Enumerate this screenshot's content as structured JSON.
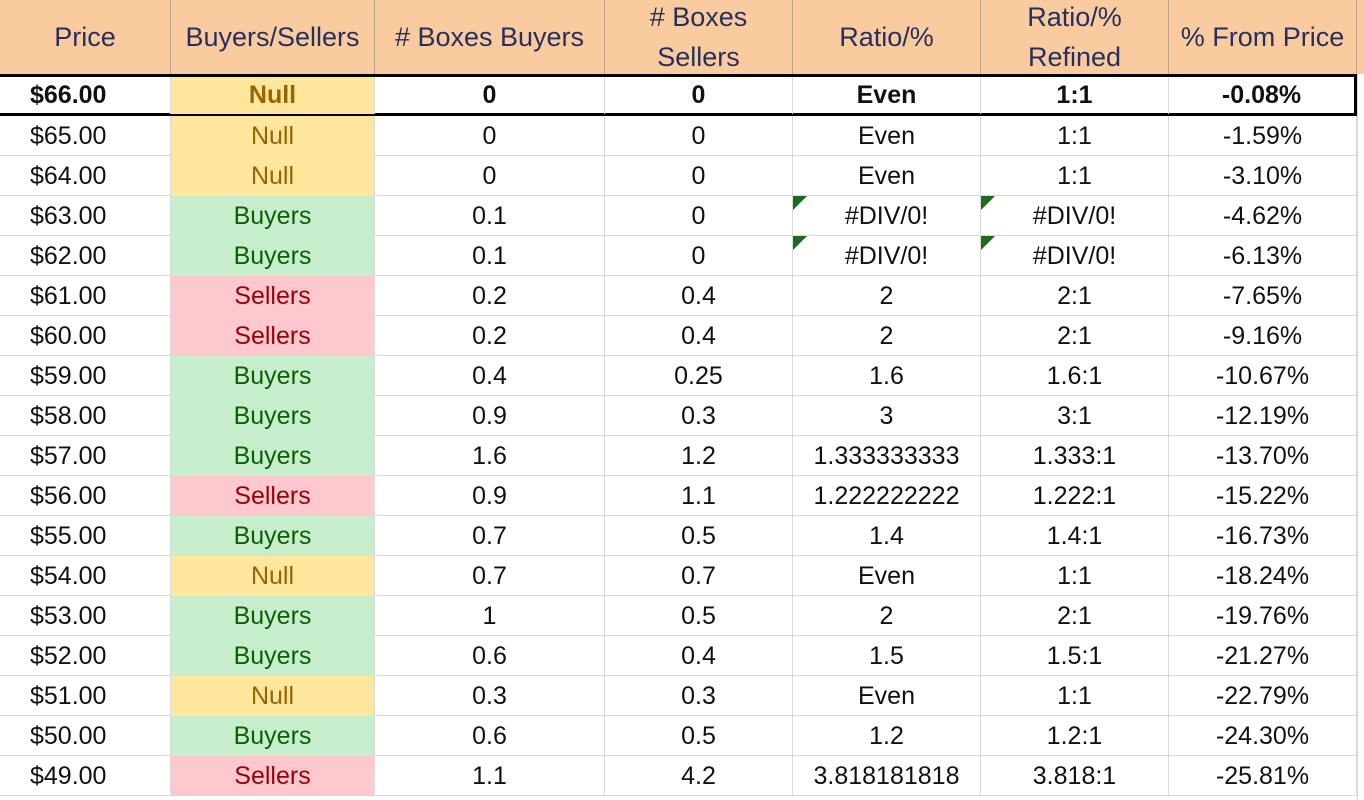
{
  "columns": [
    "Price",
    "Buyers/Sellers",
    "# Boxes Buyers",
    "# Boxes Sellers",
    "Ratio/%",
    "Ratio/% Refined",
    "% From Price"
  ],
  "header_lines": [
    [
      "Price"
    ],
    [
      "Buyers/Sellers"
    ],
    [
      "# Boxes Buyers"
    ],
    [
      "# Boxes",
      "Sellers"
    ],
    [
      "Ratio/%"
    ],
    [
      "Ratio/%",
      "Refined"
    ],
    [
      "% From Price"
    ]
  ],
  "colors": {
    "header_bg": "#fbcba0",
    "header_text": "#26305e",
    "null_bg": "#fee79c",
    "null_text": "#9b6402",
    "buyers_bg": "#c7efce",
    "buyers_text": "#0a6200",
    "sellers_bg": "#ffc7ce",
    "sellers_text": "#9c0007",
    "error_flag": "#1e6b1e"
  },
  "rows": [
    {
      "price": "$66.00",
      "bs": "Null",
      "buyers": "0",
      "sellers": "0",
      "ratio": "Even",
      "refined": "1:1",
      "from": "-0.08%"
    },
    {
      "price": "$65.00",
      "bs": "Null",
      "buyers": "0",
      "sellers": "0",
      "ratio": "Even",
      "refined": "1:1",
      "from": "-1.59%"
    },
    {
      "price": "$64.00",
      "bs": "Null",
      "buyers": "0",
      "sellers": "0",
      "ratio": "Even",
      "refined": "1:1",
      "from": "-3.10%"
    },
    {
      "price": "$63.00",
      "bs": "Buyers",
      "buyers": "0.1",
      "sellers": "0",
      "ratio": "#DIV/0!",
      "refined": "#DIV/0!",
      "from": "-4.62%",
      "flag": true
    },
    {
      "price": "$62.00",
      "bs": "Buyers",
      "buyers": "0.1",
      "sellers": "0",
      "ratio": "#DIV/0!",
      "refined": "#DIV/0!",
      "from": "-6.13%",
      "flag": true
    },
    {
      "price": "$61.00",
      "bs": "Sellers",
      "buyers": "0.2",
      "sellers": "0.4",
      "ratio": "2",
      "refined": "2:1",
      "from": "-7.65%"
    },
    {
      "price": "$60.00",
      "bs": "Sellers",
      "buyers": "0.2",
      "sellers": "0.4",
      "ratio": "2",
      "refined": "2:1",
      "from": "-9.16%"
    },
    {
      "price": "$59.00",
      "bs": "Buyers",
      "buyers": "0.4",
      "sellers": "0.25",
      "ratio": "1.6",
      "refined": "1.6:1",
      "from": "-10.67%"
    },
    {
      "price": "$58.00",
      "bs": "Buyers",
      "buyers": "0.9",
      "sellers": "0.3",
      "ratio": "3",
      "refined": "3:1",
      "from": "-12.19%"
    },
    {
      "price": "$57.00",
      "bs": "Buyers",
      "buyers": "1.6",
      "sellers": "1.2",
      "ratio": "1.333333333",
      "refined": "1.333:1",
      "from": "-13.70%"
    },
    {
      "price": "$56.00",
      "bs": "Sellers",
      "buyers": "0.9",
      "sellers": "1.1",
      "ratio": "1.222222222",
      "refined": "1.222:1",
      "from": "-15.22%"
    },
    {
      "price": "$55.00",
      "bs": "Buyers",
      "buyers": "0.7",
      "sellers": "0.5",
      "ratio": "1.4",
      "refined": "1.4:1",
      "from": "-16.73%"
    },
    {
      "price": "$54.00",
      "bs": "Null",
      "buyers": "0.7",
      "sellers": "0.7",
      "ratio": "Even",
      "refined": "1:1",
      "from": "-18.24%"
    },
    {
      "price": "$53.00",
      "bs": "Buyers",
      "buyers": "1",
      "sellers": "0.5",
      "ratio": "2",
      "refined": "2:1",
      "from": "-19.76%"
    },
    {
      "price": "$52.00",
      "bs": "Buyers",
      "buyers": "0.6",
      "sellers": "0.4",
      "ratio": "1.5",
      "refined": "1.5:1",
      "from": "-21.27%"
    },
    {
      "price": "$51.00",
      "bs": "Null",
      "buyers": "0.3",
      "sellers": "0.3",
      "ratio": "Even",
      "refined": "1:1",
      "from": "-22.79%"
    },
    {
      "price": "$50.00",
      "bs": "Buyers",
      "buyers": "0.6",
      "sellers": "0.5",
      "ratio": "1.2",
      "refined": "1.2:1",
      "from": "-24.30%"
    },
    {
      "price": "$49.00",
      "bs": "Sellers",
      "buyers": "1.1",
      "sellers": "4.2",
      "ratio": "3.818181818",
      "refined": "3.818:1",
      "from": "-25.81%"
    }
  ]
}
